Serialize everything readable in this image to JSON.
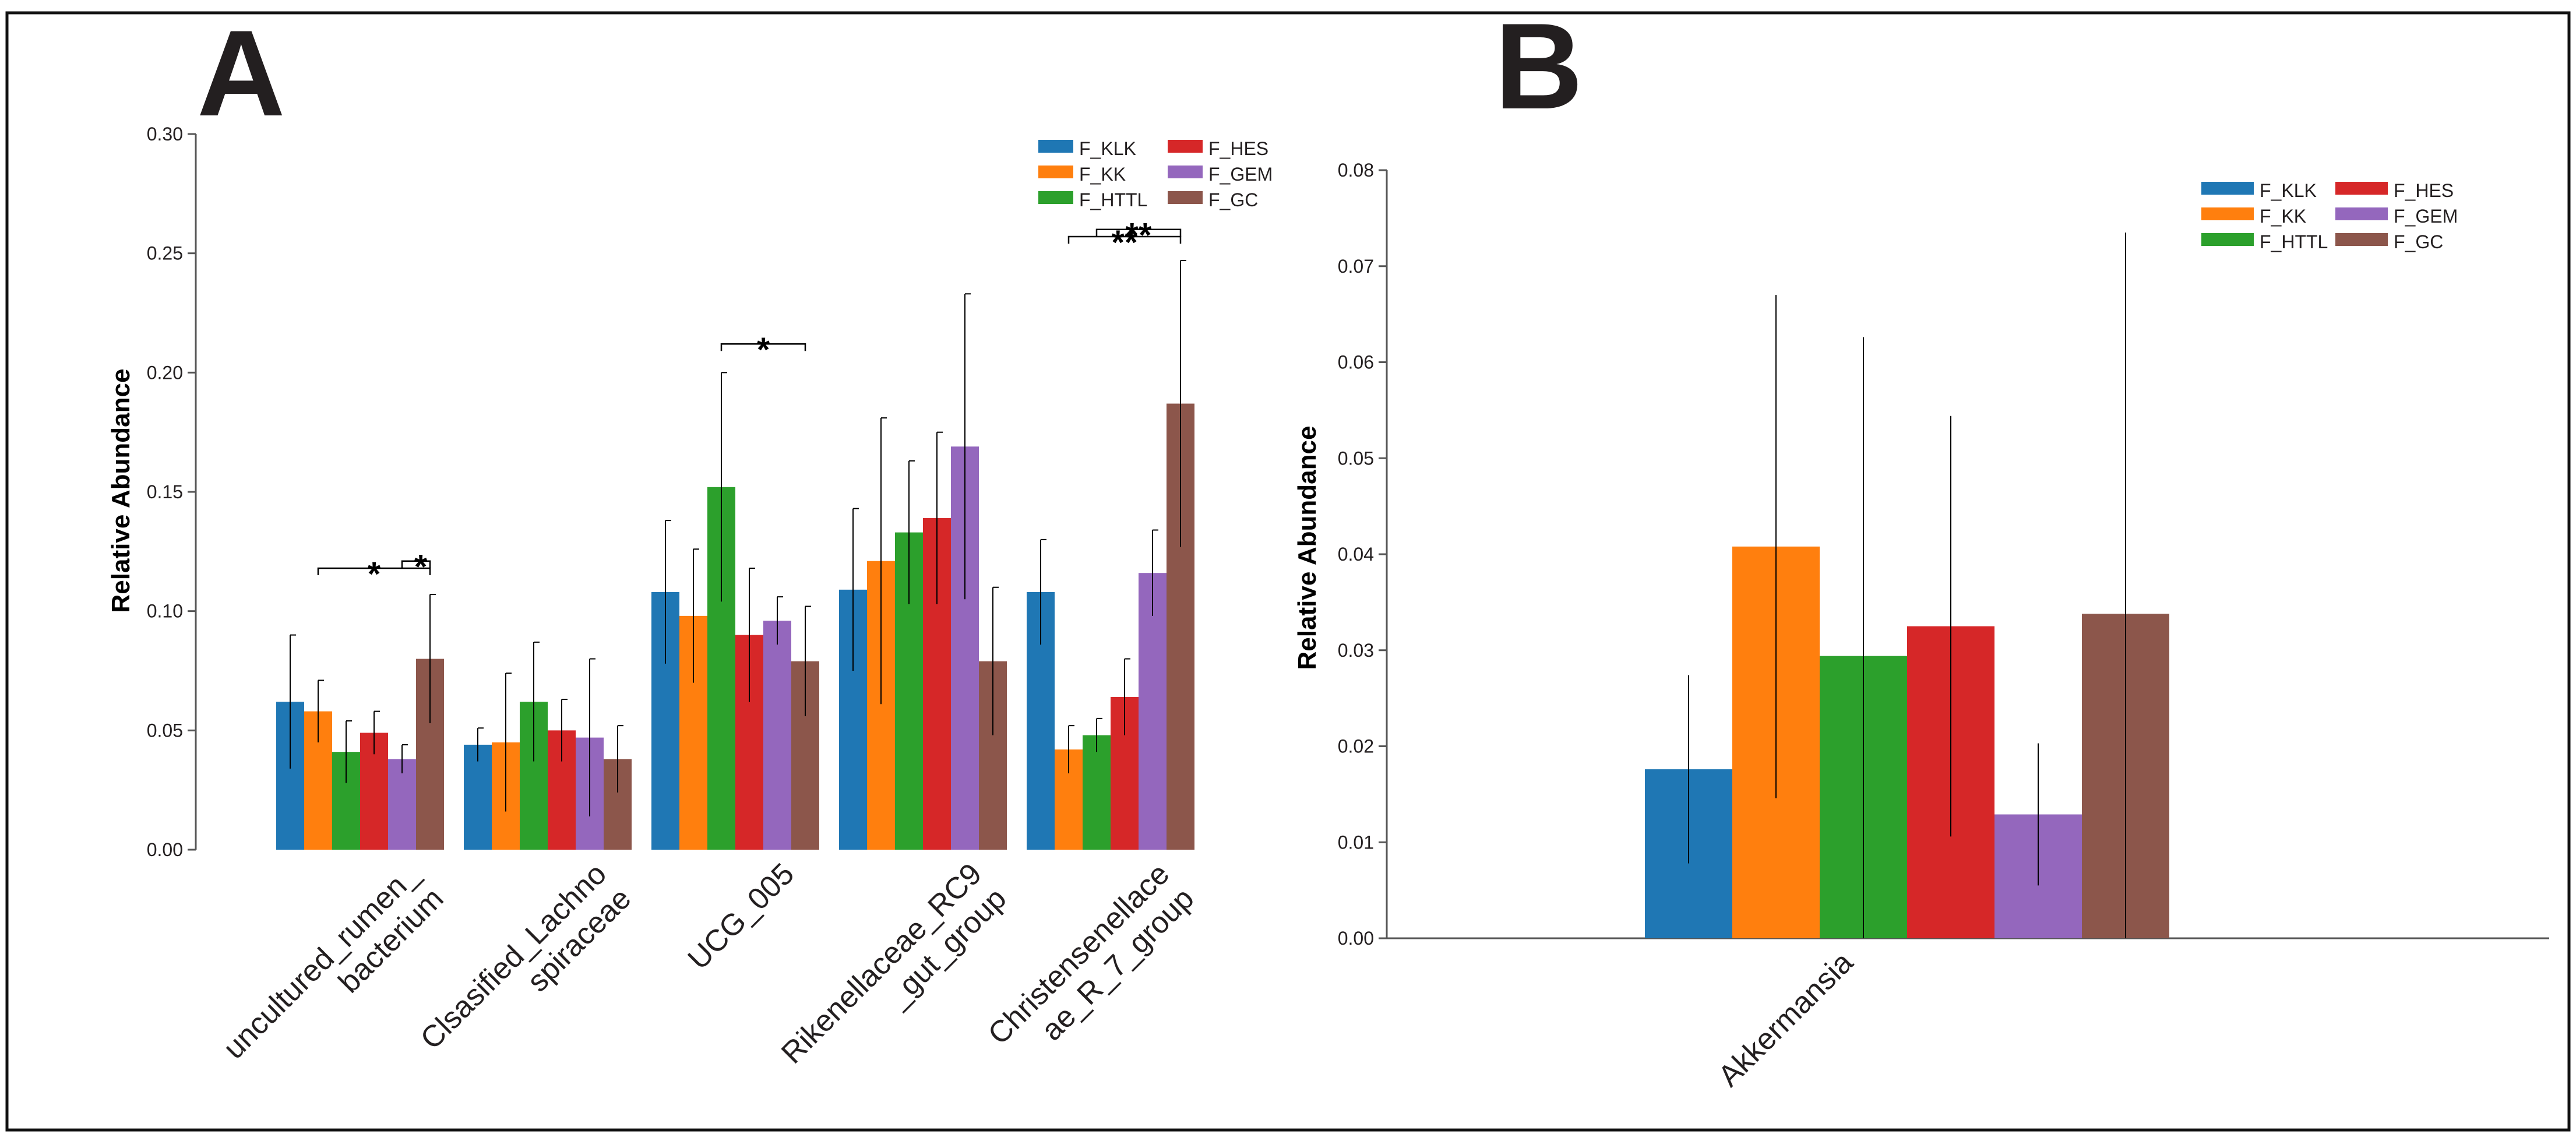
{
  "figure": {
    "panel_a_letter": "A",
    "panel_b_letter": "B",
    "colors": {
      "F_KLK": "#1f77b4",
      "F_KK": "#ff7f0e",
      "F_HTTL": "#2ca02c",
      "F_HES": "#d62728",
      "F_GEM": "#9467bd",
      "F_GC": "#8c564b"
    }
  },
  "chart_data": [
    {
      "id": "A",
      "type": "bar",
      "ylabel": "Relative Abundance",
      "ylim": [
        0,
        0.3
      ],
      "yticks": [
        "0.00",
        "0.05",
        "0.10",
        "0.15",
        "0.20",
        "0.25",
        "0.30"
      ],
      "categories": [
        [
          "uncultured_rumen_",
          "bacterium"
        ],
        [
          "Clsasified_Lachno",
          "spiraceae"
        ],
        [
          "UCG_005"
        ],
        [
          "Rikenellaceae_RC9",
          "_gut_group"
        ],
        [
          "Christensenellace",
          "ae_R_7_group"
        ]
      ],
      "series": [
        {
          "name": "F_KLK",
          "values": [
            0.062,
            0.044,
            0.108,
            0.109,
            0.108
          ],
          "errors": [
            0.028,
            0.007,
            0.03,
            0.034,
            0.022
          ]
        },
        {
          "name": "F_KK",
          "values": [
            0.058,
            0.045,
            0.098,
            0.121,
            0.042
          ],
          "errors": [
            0.013,
            0.029,
            0.028,
            0.06,
            0.01
          ]
        },
        {
          "name": "F_HTTL",
          "values": [
            0.041,
            0.062,
            0.152,
            0.133,
            0.048
          ],
          "errors": [
            0.013,
            0.025,
            0.048,
            0.03,
            0.007
          ]
        },
        {
          "name": "F_HES",
          "values": [
            0.049,
            0.05,
            0.09,
            0.139,
            0.064
          ],
          "errors": [
            0.009,
            0.013,
            0.028,
            0.036,
            0.016
          ]
        },
        {
          "name": "F_GEM",
          "values": [
            0.038,
            0.047,
            0.096,
            0.169,
            0.116
          ],
          "errors": [
            0.006,
            0.033,
            0.01,
            0.064,
            0.018
          ]
        },
        {
          "name": "F_GC",
          "values": [
            0.08,
            0.038,
            0.079,
            0.079,
            0.187
          ],
          "errors": [
            0.027,
            0.014,
            0.023,
            0.031,
            0.06
          ]
        }
      ],
      "significance": [
        {
          "label": "*",
          "category": 0,
          "from": "F_KK",
          "to": "F_GC",
          "y": 0.118
        },
        {
          "label": "*",
          "category": 0,
          "from": "F_GEM",
          "to": "F_GC",
          "y": 0.121
        },
        {
          "label": "*",
          "category": 2,
          "from": "F_HTTL",
          "to": "F_GC",
          "y": 0.212
        },
        {
          "label": "**",
          "category": 4,
          "from": "F_KK",
          "to": "F_GC",
          "y": 0.257
        },
        {
          "label": "**",
          "category": 4,
          "from": "F_HTTL",
          "to": "F_GC",
          "y": 0.26
        }
      ],
      "legend": [
        "F_KLK",
        "F_HES",
        "F_KK",
        "F_GEM",
        "F_HTTL",
        "F_GC"
      ]
    },
    {
      "id": "B",
      "type": "bar",
      "ylabel": "Relative Abundance",
      "ylim": [
        0,
        0.08
      ],
      "yticks": [
        "0.00",
        "0.01",
        "0.02",
        "0.03",
        "0.04",
        "0.05",
        "0.06",
        "0.07",
        "0.08"
      ],
      "categories": [
        [
          "Akkermansia"
        ]
      ],
      "series": [
        {
          "name": "F_KLK",
          "values": [
            0.0176
          ],
          "errors": [
            0.0098
          ]
        },
        {
          "name": "F_KK",
          "values": [
            0.0408
          ],
          "errors": [
            0.0262
          ]
        },
        {
          "name": "F_HTTL",
          "values": [
            0.0294
          ],
          "errors": [
            0.0332
          ]
        },
        {
          "name": "F_HES",
          "values": [
            0.0325
          ],
          "errors": [
            0.0219
          ]
        },
        {
          "name": "F_GEM",
          "values": [
            0.0129
          ],
          "errors": [
            0.0074
          ]
        },
        {
          "name": "F_GC",
          "values": [
            0.0338
          ],
          "errors": [
            0.0397
          ]
        }
      ],
      "legend": [
        "F_KLK",
        "F_HES",
        "F_KK",
        "F_GEM",
        "F_HTTL",
        "F_GC"
      ]
    }
  ]
}
